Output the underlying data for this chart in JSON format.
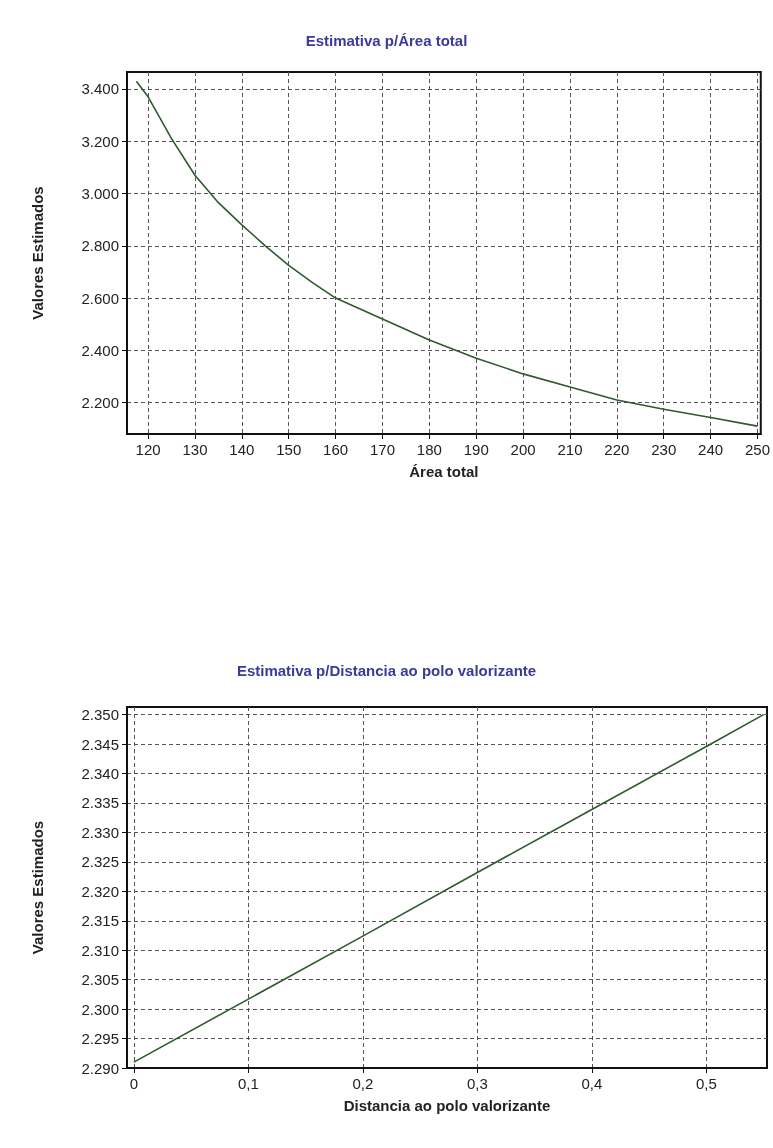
{
  "chart_data": [
    {
      "type": "line",
      "title": "Estimativa p/Área total",
      "xlabel": "Área total",
      "ylabel": "Valores Estimados",
      "x": [
        117.5,
        120,
        125,
        130,
        135,
        140,
        145,
        150,
        155,
        160,
        170,
        180,
        190,
        200,
        210,
        220,
        230,
        240,
        250
      ],
      "series": [
        {
          "color": "#2e5a2e",
          "values": [
            3430,
            3370,
            3210,
            3070,
            2965,
            2880,
            2800,
            2725,
            2660,
            2600,
            2520,
            2440,
            2370,
            2310,
            2260,
            2210,
            2175,
            2143,
            2110
          ]
        }
      ],
      "xlim": [
        115.5,
        250.7
      ],
      "ylim": [
        2080,
        3465
      ],
      "xticks": [
        120,
        130,
        140,
        150,
        160,
        170,
        180,
        190,
        200,
        210,
        220,
        230,
        240,
        250
      ],
      "yticks": [
        {
          "value": 2200,
          "label": "2.200"
        },
        {
          "value": 2400,
          "label": "2.400"
        },
        {
          "value": 2600,
          "label": "2.600"
        },
        {
          "value": 2800,
          "label": "2.800"
        },
        {
          "value": 3000,
          "label": "3.000"
        },
        {
          "value": 3200,
          "label": "3.200"
        },
        {
          "value": 3400,
          "label": "3.400"
        }
      ],
      "grid": true,
      "marker": "none",
      "line_style": "solid"
    },
    {
      "type": "line",
      "title": "Estimativa p/Distancia ao polo valorizante",
      "xlabel": "Distancia ao polo valorizante",
      "ylabel": "Valores Estimados",
      "x": [
        0,
        0.1,
        0.2,
        0.3,
        0.4,
        0.5,
        0.55
      ],
      "series": [
        {
          "color": "#2e5a2e",
          "values": [
            2291,
            2301.7,
            2312.4,
            2323.2,
            2333.9,
            2344.6,
            2350
          ]
        }
      ],
      "xlim": [
        -0.006,
        0.553
      ],
      "ylim": [
        2290,
        2351.3
      ],
      "xticks": [
        0,
        {
          "value": 0.1,
          "label": "0,1"
        },
        {
          "value": 0.2,
          "label": "0,2"
        },
        {
          "value": 0.3,
          "label": "0,3"
        },
        {
          "value": 0.4,
          "label": "0,4"
        },
        {
          "value": 0.5,
          "label": "0,5"
        }
      ],
      "yticks": [
        {
          "value": 2290,
          "label": "2.290"
        },
        {
          "value": 2295,
          "label": "2.295"
        },
        {
          "value": 2300,
          "label": "2.300"
        },
        {
          "value": 2305,
          "label": "2.305"
        },
        {
          "value": 2310,
          "label": "2.310"
        },
        {
          "value": 2315,
          "label": "2.315"
        },
        {
          "value": 2320,
          "label": "2.320"
        },
        {
          "value": 2325,
          "label": "2.325"
        },
        {
          "value": 2330,
          "label": "2.330"
        },
        {
          "value": 2335,
          "label": "2.335"
        },
        {
          "value": 2340,
          "label": "2.340"
        },
        {
          "value": 2345,
          "label": "2.345"
        },
        {
          "value": 2350,
          "label": "2.350"
        }
      ],
      "grid": true,
      "marker": "none",
      "line_style": "solid"
    }
  ]
}
